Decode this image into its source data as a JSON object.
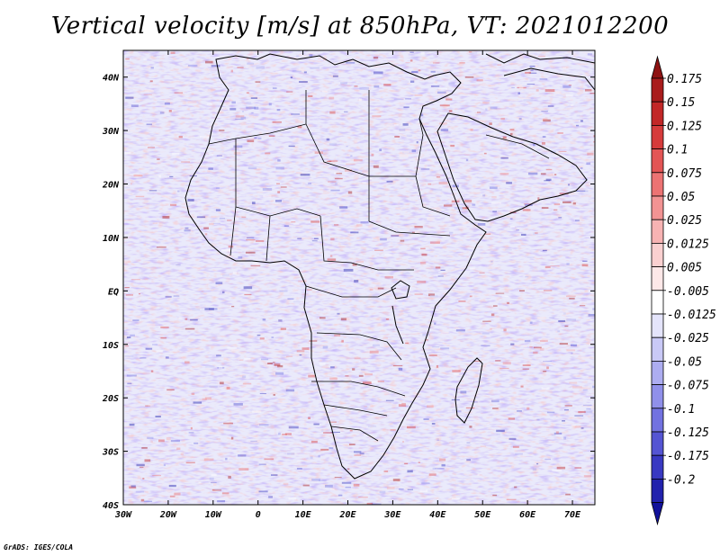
{
  "title": "Vertical velocity [m/s] at 850hPa, VT: 2021012200",
  "credit": "GrADS: IGES/COLA",
  "map": {
    "lon_range": [
      -30,
      75
    ],
    "lat_range": [
      -40,
      45
    ],
    "lon_ticks": [
      {
        "value": -30,
        "label": "30W"
      },
      {
        "value": -20,
        "label": "20W"
      },
      {
        "value": -10,
        "label": "10W"
      },
      {
        "value": 0,
        "label": "0"
      },
      {
        "value": 10,
        "label": "10E"
      },
      {
        "value": 20,
        "label": "20E"
      },
      {
        "value": 30,
        "label": "30E"
      },
      {
        "value": 40,
        "label": "40E"
      },
      {
        "value": 50,
        "label": "50E"
      },
      {
        "value": 60,
        "label": "60E"
      },
      {
        "value": 70,
        "label": "70E"
      }
    ],
    "lat_ticks": [
      {
        "value": 40,
        "label": "40N"
      },
      {
        "value": 30,
        "label": "30N"
      },
      {
        "value": 20,
        "label": "20N"
      },
      {
        "value": 10,
        "label": "10N"
      },
      {
        "value": 0,
        "label": "EQ"
      },
      {
        "value": -10,
        "label": "10S"
      },
      {
        "value": -20,
        "label": "20S"
      },
      {
        "value": -30,
        "label": "30S"
      },
      {
        "value": -40,
        "label": "40S"
      }
    ]
  },
  "colorbar": {
    "levels": [
      {
        "label": "0.175",
        "color": "#a91c1c"
      },
      {
        "label": "0.15",
        "color": "#c22727"
      },
      {
        "label": "0.125",
        "color": "#d63b3b"
      },
      {
        "label": "0.1",
        "color": "#e35555"
      },
      {
        "label": "0.075",
        "color": "#ec7373"
      },
      {
        "label": "0.05",
        "color": "#f29393"
      },
      {
        "label": "0.025",
        "color": "#f7b3b3"
      },
      {
        "label": "0.0125",
        "color": "#fad0d0"
      },
      {
        "label": "0.005",
        "color": "#fde8e8"
      },
      {
        "label": "-0.005",
        "color": "#ffffff"
      },
      {
        "label": "-0.0125",
        "color": "#e4e4fb"
      },
      {
        "label": "-0.025",
        "color": "#c9c9f6"
      },
      {
        "label": "-0.05",
        "color": "#adadf1"
      },
      {
        "label": "-0.075",
        "color": "#9090ea"
      },
      {
        "label": "-0.1",
        "color": "#7272e0"
      },
      {
        "label": "-0.125",
        "color": "#5555d3"
      },
      {
        "label": "-0.175",
        "color": "#3939c2"
      },
      {
        "label": "-0.2",
        "color": "#2222ad"
      }
    ],
    "top_arrow_color": "#8e1212",
    "bottom_arrow_color": "#12129a"
  }
}
